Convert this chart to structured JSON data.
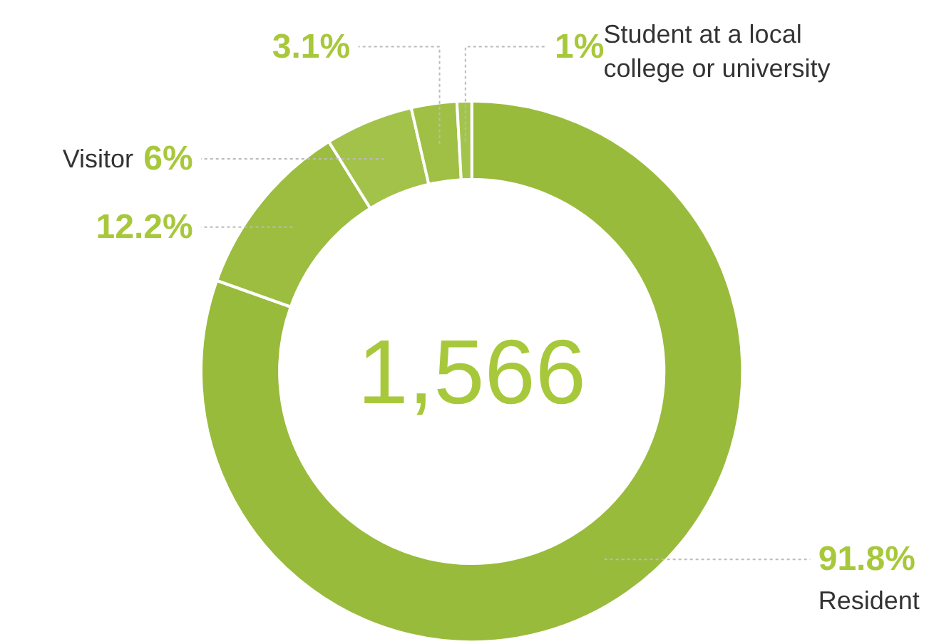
{
  "chart_data": {
    "type": "donut",
    "categories": [
      "Resident",
      null,
      "Visitor",
      null,
      "Student at a local college or university"
    ],
    "values": [
      91.8,
      12.2,
      6,
      3.1,
      1
    ],
    "colors": [
      "#99bb3c",
      "#9cbd40",
      "#a2c24a",
      "#9fc044",
      "#a3c44c"
    ],
    "value_labels": [
      "91.8%",
      "12.2%",
      "6%",
      "3.1%",
      "1%"
    ],
    "annotations": [
      "1,566"
    ]
  }
}
